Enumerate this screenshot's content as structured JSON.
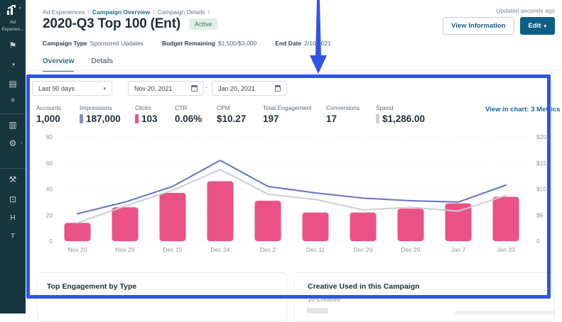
{
  "window": {
    "updated": "Updated seconds ago"
  },
  "sidebar": {
    "logo": {
      "line1": "Ad",
      "line2": "Experien...",
      "caret": "▾"
    },
    "items": [
      {
        "name": "flag",
        "glyph": "⚑"
      },
      {
        "name": "gauge",
        "glyph": "◔"
      },
      {
        "name": "card",
        "glyph": "▤"
      },
      {
        "name": "collapse",
        "glyph": "«"
      },
      {
        "name": "library",
        "glyph": "▥"
      },
      {
        "name": "settings",
        "glyph": "⚙",
        "chevron": "›"
      },
      {
        "name": "tools",
        "glyph": "⚒"
      },
      {
        "name": "monitor",
        "glyph": "⊡"
      },
      {
        "name": "headline",
        "glyph": "H"
      },
      {
        "name": "text",
        "glyph": "T"
      }
    ]
  },
  "breadcrumb": {
    "items": [
      "Ad Experiences",
      "Campaign Overview",
      "Campaign Details"
    ],
    "separator": "/"
  },
  "header": {
    "title": "2020-Q3 Top 100 (Ent)",
    "status": "Active",
    "meta": [
      {
        "label": "Campaign Type",
        "value": "Sponsored Updates"
      },
      {
        "label": "Budget Remaining",
        "value": "$1,500/$3,000"
      },
      {
        "label": "End Date",
        "value": "2/10/2021"
      }
    ],
    "view_information": "View Information",
    "edit": "Edit",
    "caret": "▾"
  },
  "tabs": [
    {
      "label": "Overview",
      "active": true
    },
    {
      "label": "Details",
      "active": false
    }
  ],
  "filters": {
    "range": "Last 90 days",
    "start_date": "Nov 20, 2021",
    "end_date": "Jan 20, 2021",
    "separator": "-",
    "caret": "▾"
  },
  "metrics": [
    {
      "label": "Accounts",
      "value": "1,000"
    },
    {
      "label": "Impressions",
      "value": "187,000",
      "chip_color": "#8193c8"
    },
    {
      "label": "Clicks",
      "value": "103",
      "chip_color": "#e85386"
    },
    {
      "label": "CTR",
      "value": "0.06%"
    },
    {
      "label": "CPM",
      "value": "$10.27"
    },
    {
      "label": "Total Engagement",
      "value": "197"
    },
    {
      "label": "Conversions",
      "value": "17"
    },
    {
      "label": "Spend",
      "value": "$1,286.00",
      "chip_color": "#ccd2d8"
    }
  ],
  "view_in_chart": {
    "label": "View in chart: 3 Metrics",
    "caret": "▾"
  },
  "chart_data": {
    "type": "bar",
    "categories": [
      "Nov 20",
      "Nov 29",
      "Dec 15",
      "Dec 24",
      "Dec 2",
      "Dec 11",
      "Dec 20",
      "Dec 29",
      "Jan 7",
      "Jan 20"
    ],
    "series": [
      {
        "name": "Clicks",
        "type": "bar",
        "color": "#ea5286",
        "axis": "left",
        "values": [
          14,
          26,
          37,
          46,
          31,
          22,
          22,
          25,
          29,
          34
        ]
      },
      {
        "name": "Impressions",
        "type": "line",
        "color": "#6374c5",
        "axis": "left",
        "values": [
          21,
          30,
          42,
          62,
          42,
          37,
          33,
          31,
          30,
          43
        ]
      },
      {
        "name": "Spend",
        "type": "line",
        "color": "#c9ced6",
        "axis": "right",
        "values": [
          14,
          27,
          39,
          55,
          36,
          32,
          24,
          26,
          23,
          35
        ]
      }
    ],
    "left_axis": {
      "ticks": [
        0,
        20,
        40,
        60,
        80
      ],
      "max": 80
    },
    "right_axis": {
      "ticks": [
        "0",
        "$5",
        "$10",
        "$15",
        "$20"
      ]
    },
    "grid": true,
    "legend": "none",
    "title": "",
    "xlabel": "",
    "ylabel": ""
  },
  "cards": [
    {
      "title": "Top Engagement by Type",
      "subtitle": ""
    },
    {
      "title": "Creative Used in this Campaign",
      "subtitle": "10 Creative"
    }
  ],
  "annotation": {
    "color": "#2f54e6"
  }
}
